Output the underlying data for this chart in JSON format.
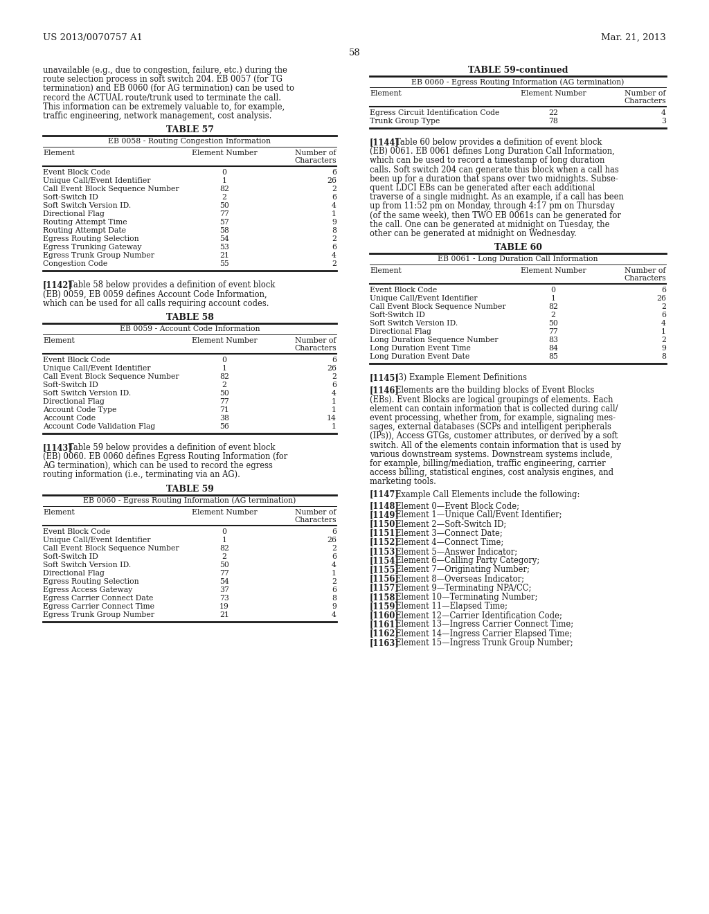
{
  "background_color": "#ffffff",
  "page_header_left": "US 2013/0070757 A1",
  "page_header_right": "Mar. 21, 2013",
  "page_number": "58",
  "left_column": {
    "intro_text": [
      "unavailable (e.g., due to congestion, failure, etc.) during the",
      "route selection process in soft switch ​204. EB 0057 (for TG",
      "termination) and EB 0060 (for AG termination) can be used to",
      "record the ACTUAL route/trunk used to terminate the call.",
      "This information can be extremely valuable to, for example,",
      "traffic engineering, network management, cost analysis."
    ],
    "table57": {
      "title": "TABLE 57",
      "subtitle": "EB 0058 - Routing Congestion Information",
      "rows": [
        [
          "Event Block Code",
          "0",
          "6"
        ],
        [
          "Unique Call/Event Identifier",
          "1",
          "26"
        ],
        [
          "Call Event Block Sequence Number",
          "82",
          "2"
        ],
        [
          "Soft-Switch ID",
          "2",
          "6"
        ],
        [
          "Soft Switch Version ID.",
          "50",
          "4"
        ],
        [
          "Directional Flag",
          "77",
          "1"
        ],
        [
          "Routing Attempt Time",
          "57",
          "9"
        ],
        [
          "Routing Attempt Date",
          "58",
          "8"
        ],
        [
          "Egress Routing Selection",
          "54",
          "2"
        ],
        [
          "Egress Trunking Gateway",
          "53",
          "6"
        ],
        [
          "Egress Trunk Group Number",
          "21",
          "4"
        ],
        [
          "Congestion Code",
          "55",
          "2"
        ]
      ]
    },
    "para1142": {
      "ref": "[1142]",
      "lines": [
        "Table 58 below provides a definition of event block",
        "(EB) 0059, EB 0059 defines Account Code Information,",
        "which can be used for all calls requiring account codes."
      ]
    },
    "table58": {
      "title": "TABLE 58",
      "subtitle": "EB 0059 - Account Code Information",
      "rows": [
        [
          "Event Block Code",
          "0",
          "6"
        ],
        [
          "Unique Call/Event Identifier",
          "1",
          "26"
        ],
        [
          "Call Event Block Sequence Number",
          "82",
          "2"
        ],
        [
          "Soft-Switch ID",
          "2",
          "6"
        ],
        [
          "Soft Switch Version ID.",
          "50",
          "4"
        ],
        [
          "Directional Flag",
          "77",
          "1"
        ],
        [
          "Account Code Type",
          "71",
          "1"
        ],
        [
          "Account Code",
          "38",
          "14"
        ],
        [
          "Account Code Validation Flag",
          "56",
          "1"
        ]
      ]
    },
    "para1143": {
      "ref": "[1143]",
      "lines": [
        "Table 59 below provides a definition of event block",
        "(EB) 0060. EB 0060 defines Egress Routing Information (for",
        "AG termination), which can be used to record the egress",
        "routing information (i.e., terminating via an AG)."
      ]
    },
    "table59": {
      "title": "TABLE 59",
      "subtitle": "EB 0060 - Egress Routing Information (AG termination)",
      "rows": [
        [
          "Event Block Code",
          "0",
          "6"
        ],
        [
          "Unique Call/Event Identifier",
          "1",
          "26"
        ],
        [
          "Call Event Block Sequence Number",
          "82",
          "2"
        ],
        [
          "Soft-Switch ID",
          "2",
          "6"
        ],
        [
          "Soft Switch Version ID.",
          "50",
          "4"
        ],
        [
          "Directional Flag",
          "77",
          "1"
        ],
        [
          "Egress Routing Selection",
          "54",
          "2"
        ],
        [
          "Egress Access Gateway",
          "37",
          "6"
        ],
        [
          "Egress Carrier Connect Date",
          "73",
          "8"
        ],
        [
          "Egress Carrier Connect Time",
          "19",
          "9"
        ],
        [
          "Egress Trunk Group Number",
          "21",
          "4"
        ]
      ]
    }
  },
  "right_column": {
    "table59cont": {
      "title": "TABLE 59-continued",
      "subtitle": "EB 0060 - Egress Routing Information (AG termination)",
      "rows": [
        [
          "Egress Circuit Identification Code",
          "22",
          "4"
        ],
        [
          "Trunk Group Type",
          "78",
          "3"
        ]
      ]
    },
    "para1144": {
      "ref": "[1144]",
      "lines": [
        "Table 60 below provides a definition of event block",
        "(EB) 0061. EB 0061 defines Long Duration Call Information,",
        "which can be used to record a timestamp of long duration",
        "calls. Soft switch ​204 can generate this block when a call has",
        "been up for a duration that spans over two midnights. Subse-",
        "quent LDCI EBs can be generated after each additional",
        "traverse of a single midnight. As an example, if a call has been",
        "up from 11:52 pm on Monday, through 4:17 pm on Thursday",
        "(of the same week), then TWO EB 0061s can be generated for",
        "the call. One can be generated at midnight on Tuesday, the",
        "other can be generated at midnight on Wednesday."
      ]
    },
    "table60": {
      "title": "TABLE 60",
      "subtitle": "EB 0061 - Long Duration Call Information",
      "rows": [
        [
          "Event Block Code",
          "0",
          "6"
        ],
        [
          "Unique Call/Event Identifier",
          "1",
          "26"
        ],
        [
          "Call Event Block Sequence Number",
          "82",
          "2"
        ],
        [
          "Soft-Switch ID",
          "2",
          "6"
        ],
        [
          "Soft Switch Version ID.",
          "50",
          "4"
        ],
        [
          "Directional Flag",
          "77",
          "1"
        ],
        [
          "Long Duration Sequence Number",
          "83",
          "2"
        ],
        [
          "Long Duration Event Time",
          "84",
          "9"
        ],
        [
          "Long Duration Event Date",
          "85",
          "8"
        ]
      ]
    },
    "para1145": {
      "ref": "[1145]",
      "lines": [
        "(3) Example Element Definitions"
      ]
    },
    "para1146": {
      "ref": "[1146]",
      "lines": [
        "Elements are the building blocks of Event Blocks",
        "(EBs). Event Blocks are logical groupings of elements. Each",
        "element can contain information that is collected during call/",
        "event processing, whether from, for example, signaling mes-",
        "sages, external databases (SCPs and intelligent peripherals",
        "(IPs)), Access GTGs, customer attributes, or derived by a soft",
        "switch. All of the elements contain information that is used by",
        "various downstream systems. Downstream systems include,",
        "for example, billing/mediation, traffic engineering, carrier",
        "access billing, statistical engines, cost analysis engines, and",
        "marketing tools."
      ]
    },
    "para1147": {
      "ref": "[1147]",
      "lines": [
        "Example Call Elements include the following:"
      ]
    },
    "elements_list": [
      {
        "ref": "[1148]",
        "text": "Element 0—Event Block Code;"
      },
      {
        "ref": "[1149]",
        "text": "Element 1—Unique Call/Event Identifier;"
      },
      {
        "ref": "[1150]",
        "text": "Element 2—Soft-Switch ID;"
      },
      {
        "ref": "[1151]",
        "text": "Element 3—Connect Date;"
      },
      {
        "ref": "[1152]",
        "text": "Element 4—Connect Time;"
      },
      {
        "ref": "[1153]",
        "text": "Element 5—Answer Indicator;"
      },
      {
        "ref": "[1154]",
        "text": "Element 6—Calling Party Category;"
      },
      {
        "ref": "[1155]",
        "text": "Element 7—Originating Number;"
      },
      {
        "ref": "[1156]",
        "text": "Element 8—Overseas Indicator;"
      },
      {
        "ref": "[1157]",
        "text": "Element 9—Terminating NPA/CC;"
      },
      {
        "ref": "[1158]",
        "text": "Element 10—Terminating Number;"
      },
      {
        "ref": "[1159]",
        "text": "Element 11—Elapsed Time;"
      },
      {
        "ref": "[1160]",
        "text": "Element 12—Carrier Identification Code;"
      },
      {
        "ref": "[1161]",
        "text": "Element 13—Ingress Carrier Connect Time;"
      },
      {
        "ref": "[1162]",
        "text": "Element 14—Ingress Carrier Elapsed Time;"
      },
      {
        "ref": "[1163]",
        "text": "Element 15—Ingress Trunk Group Number;"
      }
    ]
  }
}
